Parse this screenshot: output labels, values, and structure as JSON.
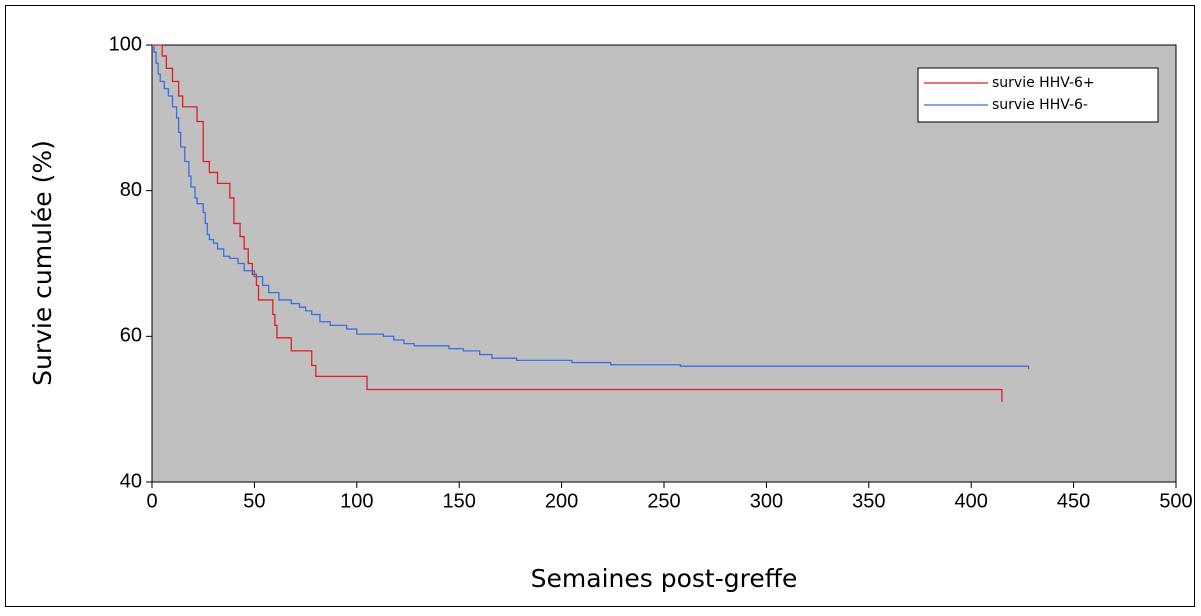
{
  "chart_data": {
    "type": "line",
    "step": true,
    "xlabel": "Semaines post-greffe",
    "ylabel": "Survie cumulée (%)",
    "xlim": [
      0,
      500
    ],
    "xticks": [
      0,
      50,
      100,
      150,
      200,
      250,
      300,
      350,
      400,
      450,
      500
    ],
    "ylim": [
      40,
      100
    ],
    "yticks": [
      40,
      60,
      80,
      100
    ],
    "grid": false,
    "legend": "upper right",
    "background": "#c0c0c0",
    "series": [
      {
        "name": "survie HHV-6+",
        "color": "#e02020",
        "x": [
          0,
          5,
          5,
          7,
          7,
          10,
          10,
          13,
          13,
          15,
          15,
          22,
          22,
          25,
          25,
          28,
          28,
          32,
          32,
          38,
          38,
          40,
          40,
          43,
          43,
          45,
          45,
          47,
          47,
          49,
          49,
          51,
          51,
          52,
          52,
          59,
          59,
          60,
          60,
          61,
          61,
          68,
          68,
          78,
          78,
          80,
          80,
          105,
          105,
          415,
          415
        ],
        "values": [
          100,
          100,
          98.5,
          98.5,
          96.8,
          96.8,
          95,
          95,
          93,
          93,
          91.5,
          91.5,
          89.5,
          89.5,
          84,
          84,
          82.5,
          82.5,
          81,
          81,
          79,
          79,
          75.5,
          75.5,
          73.7,
          73.7,
          72,
          72,
          70,
          70,
          68.5,
          68.5,
          67,
          67,
          65,
          65,
          63,
          63,
          61.5,
          61.5,
          59.8,
          59.8,
          58,
          58,
          56,
          56,
          54.5,
          54.5,
          52.7,
          52.7,
          51
        ]
      },
      {
        "name": "survie HHV-6-",
        "color": "#3a6fe0",
        "x": [
          0,
          1,
          1,
          2,
          2,
          3,
          3,
          4,
          4,
          6,
          6,
          8,
          8,
          10,
          10,
          12,
          12,
          13,
          13,
          14,
          14,
          16,
          16,
          18,
          18,
          19,
          19,
          21,
          21,
          22,
          22,
          25,
          25,
          26,
          26,
          27,
          27,
          28,
          28,
          30,
          30,
          32,
          32,
          35,
          35,
          38,
          38,
          42,
          42,
          45,
          45,
          50,
          50,
          54,
          54,
          57,
          57,
          62,
          62,
          68,
          68,
          72,
          72,
          75,
          75,
          78,
          78,
          82,
          82,
          87,
          87,
          95,
          95,
          100,
          100,
          113,
          113,
          118,
          118,
          123,
          123,
          128,
          128,
          145,
          145,
          152,
          152,
          160,
          160,
          166,
          166,
          178,
          178,
          205,
          205,
          224,
          224,
          258,
          258,
          428,
          428
        ],
        "values": [
          100,
          100,
          99,
          99,
          97.5,
          97.5,
          96,
          96,
          95,
          95,
          94,
          94,
          93,
          93,
          91.5,
          91.5,
          90,
          90,
          88,
          88,
          86,
          86,
          84,
          84,
          82,
          82,
          80.5,
          80.5,
          79,
          79,
          78.2,
          78.2,
          77,
          77,
          75.5,
          75.5,
          74,
          74,
          73.3,
          73.3,
          72.8,
          72.8,
          72,
          72,
          71,
          71,
          70.7,
          70.7,
          70,
          70,
          69,
          69,
          68.2,
          68.2,
          67,
          67,
          66,
          66,
          65,
          65,
          64.5,
          64.5,
          64,
          64,
          63.5,
          63.5,
          63,
          63,
          62,
          62,
          61.5,
          61.5,
          61,
          61,
          60.3,
          60.3,
          60,
          60,
          59.5,
          59.5,
          59,
          59,
          58.7,
          58.7,
          58.3,
          58.3,
          58,
          58,
          57.5,
          57.5,
          57,
          57,
          56.7,
          56.7,
          56.4,
          56.4,
          56.1,
          56.1,
          55.9,
          55.9,
          55.5
        ]
      }
    ]
  }
}
